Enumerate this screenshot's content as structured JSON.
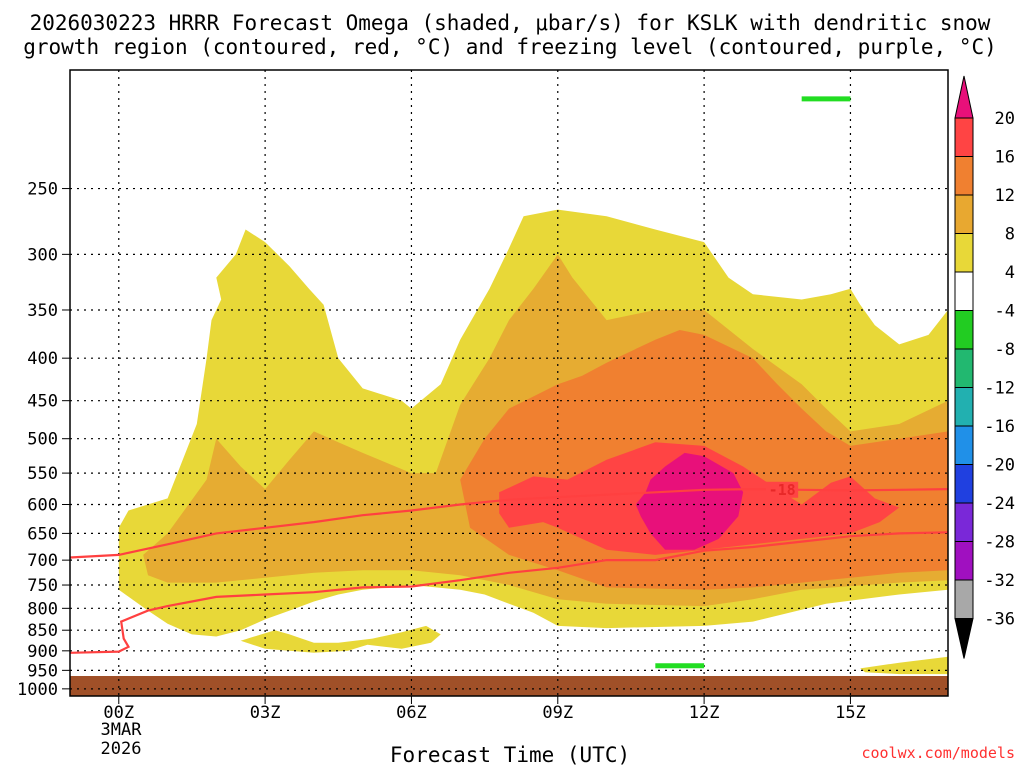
{
  "chart_data": {
    "type": "time-height contour (filled omega) with line contours",
    "title_line1": "2026030223 HRRR Forecast Omega (shaded, μbar/s) for KSLK with dendritic snow",
    "title_line2": "growth region (contoured, red, °C) and freezing level (contoured, purple, °C)",
    "xlabel": "Forecast Time (UTC)",
    "ylabel": "",
    "x_unit": "hours since 2026-03-03 00Z",
    "xlim": [
      -1,
      17
    ],
    "ylim_hPa": [
      180,
      1020
    ],
    "x_ticks": [
      {
        "h": 0,
        "label": "00Z"
      },
      {
        "h": 3,
        "label": "03Z"
      },
      {
        "h": 6,
        "label": "06Z"
      },
      {
        "h": 9,
        "label": "09Z"
      },
      {
        "h": 12,
        "label": "12Z"
      },
      {
        "h": 15,
        "label": "15Z"
      }
    ],
    "x_date_label": [
      "3MAR",
      "2026"
    ],
    "y_ticks": [
      250,
      300,
      350,
      400,
      450,
      500,
      550,
      600,
      650,
      700,
      750,
      800,
      850,
      900,
      950,
      1000
    ],
    "colorbar": {
      "levels": [
        "20",
        "16",
        "12",
        "8",
        "4",
        "-4",
        "-8",
        "-12",
        "-16",
        "-20",
        "-24",
        "-28",
        "-32",
        "-36"
      ],
      "colors": [
        "#ff4444",
        "#f08030",
        "#e8a830",
        "#e8d838",
        "#ffffff",
        "#22cc22",
        "#22b870",
        "#22b0b0",
        "#2090e8",
        "#2040e0",
        "#7a28d8",
        "#a010c0",
        "#a8a8a8"
      ],
      "top_color": "#e8107a",
      "bottom_color": "#000000"
    },
    "omega_bins_colors": {
      "4-8": "#e8d838",
      "8-12": "#e6ac32",
      "12-16": "#f08030",
      "16-20": "#ff4444",
      ">20": "#e8107a"
    },
    "omega_regions": [
      {
        "bin": "4-8",
        "points": [
          [
            0,
            640
          ],
          [
            0.2,
            610
          ],
          [
            1,
            590
          ],
          [
            1.6,
            480
          ],
          [
            1.8,
            400
          ],
          [
            1.9,
            360
          ],
          [
            2.1,
            340
          ],
          [
            2,
            320
          ],
          [
            2.4,
            300
          ],
          [
            2.6,
            280
          ],
          [
            3,
            290
          ],
          [
            3.5,
            310
          ],
          [
            3.9,
            330
          ],
          [
            4.2,
            345
          ],
          [
            4.5,
            400
          ],
          [
            5,
            435
          ],
          [
            5.8,
            450
          ],
          [
            6,
            460
          ],
          [
            6.6,
            430
          ],
          [
            7,
            380
          ],
          [
            7.6,
            330
          ],
          [
            8,
            295
          ],
          [
            8.3,
            270
          ],
          [
            9,
            265
          ],
          [
            10,
            270
          ],
          [
            11,
            280
          ],
          [
            12,
            290
          ],
          [
            12.5,
            320
          ],
          [
            13,
            335
          ],
          [
            14,
            340
          ],
          [
            14.6,
            335
          ],
          [
            15,
            330
          ],
          [
            15.2,
            345
          ],
          [
            15.5,
            365
          ],
          [
            16,
            385
          ],
          [
            16.6,
            375
          ],
          [
            17,
            350
          ],
          [
            17,
            760
          ],
          [
            16,
            770
          ],
          [
            14.5,
            790
          ],
          [
            13,
            830
          ],
          [
            12,
            840
          ],
          [
            10,
            845
          ],
          [
            9,
            840
          ],
          [
            8.5,
            810
          ],
          [
            8,
            790
          ],
          [
            7.5,
            770
          ],
          [
            7,
            760
          ],
          [
            6,
            750
          ],
          [
            5,
            760
          ],
          [
            4.5,
            770
          ],
          [
            4,
            785
          ],
          [
            3.5,
            805
          ],
          [
            3,
            825
          ],
          [
            2.5,
            850
          ],
          [
            2,
            865
          ],
          [
            1.5,
            860
          ],
          [
            1,
            835
          ],
          [
            0.6,
            805
          ],
          [
            0,
            760
          ]
        ]
      },
      {
        "bin": "4-8",
        "points": [
          [
            2.5,
            875
          ],
          [
            3.2,
            850
          ],
          [
            3.5,
            860
          ],
          [
            4,
            880
          ],
          [
            4.5,
            880
          ],
          [
            5.2,
            870
          ],
          [
            5.8,
            855
          ],
          [
            6.3,
            840
          ],
          [
            6.6,
            860
          ],
          [
            6.4,
            880
          ],
          [
            5.8,
            895
          ],
          [
            5.1,
            885
          ],
          [
            4.7,
            900
          ],
          [
            4,
            905
          ],
          [
            3.5,
            900
          ],
          [
            3,
            895
          ]
        ]
      },
      {
        "bin": "4-8",
        "points": [
          [
            15.2,
            945
          ],
          [
            16,
            930
          ],
          [
            17,
            915
          ],
          [
            17,
            960
          ],
          [
            16,
            960
          ],
          [
            15.3,
            955
          ]
        ]
      },
      {
        "bin": "8-12",
        "points": [
          [
            0.5,
            690
          ],
          [
            1,
            650
          ],
          [
            1.8,
            560
          ],
          [
            2,
            500
          ],
          [
            2.5,
            540
          ],
          [
            3,
            575
          ],
          [
            3.5,
            530
          ],
          [
            4,
            490
          ],
          [
            4.5,
            505
          ],
          [
            5,
            520
          ],
          [
            6,
            550
          ],
          [
            6.5,
            550
          ],
          [
            7,
            455
          ],
          [
            7.6,
            400
          ],
          [
            8,
            360
          ],
          [
            8.5,
            330
          ],
          [
            9,
            300
          ],
          [
            9.3,
            320
          ],
          [
            10,
            360
          ],
          [
            11,
            350
          ],
          [
            12,
            350
          ],
          [
            13,
            390
          ],
          [
            14,
            430
          ],
          [
            14.5,
            460
          ],
          [
            15,
            490
          ],
          [
            16,
            480
          ],
          [
            17,
            450
          ],
          [
            17,
            740
          ],
          [
            16,
            745
          ],
          [
            14,
            760
          ],
          [
            13,
            780
          ],
          [
            12,
            795
          ],
          [
            10,
            790
          ],
          [
            9,
            780
          ],
          [
            8,
            750
          ],
          [
            7,
            730
          ],
          [
            6,
            720
          ],
          [
            5,
            720
          ],
          [
            4,
            725
          ],
          [
            3,
            735
          ],
          [
            2,
            745
          ],
          [
            1,
            745
          ],
          [
            0.6,
            730
          ]
        ]
      },
      {
        "bin": "12-16",
        "points": [
          [
            7,
            560
          ],
          [
            7.5,
            500
          ],
          [
            8,
            460
          ],
          [
            9,
            430
          ],
          [
            9.5,
            420
          ],
          [
            10,
            405
          ],
          [
            11,
            380
          ],
          [
            11.5,
            370
          ],
          [
            12,
            375
          ],
          [
            13,
            400
          ],
          [
            13.5,
            430
          ],
          [
            14,
            460
          ],
          [
            14.5,
            490
          ],
          [
            15,
            510
          ],
          [
            16,
            500
          ],
          [
            17,
            490
          ],
          [
            17,
            720
          ],
          [
            16,
            725
          ],
          [
            15,
            735
          ],
          [
            14,
            745
          ],
          [
            13,
            755
          ],
          [
            12,
            760
          ],
          [
            10,
            755
          ],
          [
            9,
            720
          ],
          [
            8,
            690
          ],
          [
            7.2,
            640
          ]
        ]
      },
      {
        "bin": "16-20",
        "points": [
          [
            7.8,
            580
          ],
          [
            8.5,
            555
          ],
          [
            9.2,
            560
          ],
          [
            10,
            530
          ],
          [
            11,
            505
          ],
          [
            12,
            510
          ],
          [
            12.8,
            540
          ],
          [
            13.5,
            575
          ],
          [
            14,
            600
          ],
          [
            14.6,
            565
          ],
          [
            15,
            555
          ],
          [
            15.5,
            590
          ],
          [
            16,
            605
          ],
          [
            15.6,
            630
          ],
          [
            15,
            650
          ],
          [
            14.5,
            655
          ],
          [
            14,
            660
          ],
          [
            13,
            670
          ],
          [
            12,
            680
          ],
          [
            11,
            690
          ],
          [
            10,
            680
          ],
          [
            9.5,
            660
          ],
          [
            9,
            640
          ],
          [
            8.7,
            630
          ],
          [
            8,
            640
          ],
          [
            7.8,
            615
          ]
        ]
      },
      {
        "bin": ">20",
        "points": [
          [
            10.9,
            560
          ],
          [
            11.2,
            540
          ],
          [
            11.6,
            520
          ],
          [
            12,
            525
          ],
          [
            12.6,
            550
          ],
          [
            12.8,
            580
          ],
          [
            12.7,
            620
          ],
          [
            12.3,
            660
          ],
          [
            11.8,
            680
          ],
          [
            11.2,
            680
          ],
          [
            10.9,
            650
          ],
          [
            10.7,
            620
          ],
          [
            10.6,
            600
          ],
          [
            10.8,
            580
          ]
        ]
      }
    ],
    "dendritic_isotherm_lines": [
      {
        "label": "-18",
        "color": "#ff4040",
        "points": [
          [
            -1,
            695
          ],
          [
            0,
            690
          ],
          [
            1,
            670
          ],
          [
            2,
            650
          ],
          [
            3,
            640
          ],
          [
            4,
            630
          ],
          [
            5,
            618
          ],
          [
            6,
            610
          ],
          [
            7,
            600
          ],
          [
            8,
            592
          ],
          [
            9,
            588
          ],
          [
            10,
            584
          ],
          [
            11,
            580
          ],
          [
            12,
            576
          ],
          [
            13,
            575
          ],
          [
            14,
            576
          ],
          [
            15,
            577
          ],
          [
            16,
            576
          ],
          [
            17,
            575
          ]
        ]
      },
      {
        "label": "",
        "color": "#ff4040",
        "points": [
          [
            -1,
            905
          ],
          [
            0,
            902
          ],
          [
            0.2,
            890
          ],
          [
            0.1,
            870
          ],
          [
            0.05,
            830
          ],
          [
            0.6,
            805
          ],
          [
            1,
            795
          ],
          [
            1.5,
            785
          ],
          [
            2,
            775
          ],
          [
            3,
            770
          ],
          [
            4,
            765
          ],
          [
            5,
            755
          ],
          [
            6,
            753
          ],
          [
            7,
            740
          ],
          [
            8,
            725
          ],
          [
            9,
            715
          ],
          [
            10,
            700
          ],
          [
            11,
            700
          ],
          [
            12,
            682
          ],
          [
            13,
            675
          ],
          [
            14,
            665
          ],
          [
            15,
            655
          ],
          [
            16,
            650
          ],
          [
            17,
            648
          ]
        ]
      }
    ],
    "freezing_level_segments": [
      {
        "color": "#22dd22",
        "x": [
          14,
          15
        ],
        "p": 195
      },
      {
        "color": "#22dd22",
        "x": [
          11,
          12
        ],
        "p": 938
      }
    ],
    "ground_fill": {
      "color": "#a05028",
      "p_from": 965
    }
  },
  "footer": {
    "credit": "coolwx.com/models"
  }
}
